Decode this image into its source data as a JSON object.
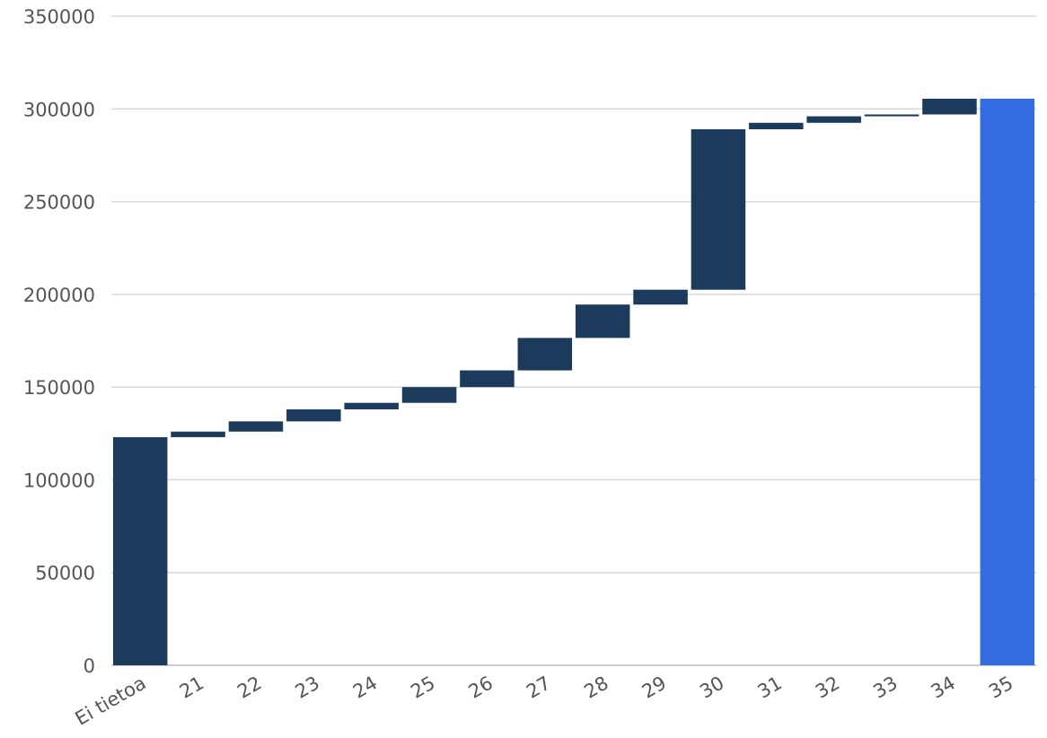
{
  "chart_data": {
    "type": "bar",
    "subtype": "waterfall",
    "title": "",
    "xlabel": "",
    "ylabel": "",
    "ylim": [
      0,
      350000
    ],
    "yticks": [
      0,
      50000,
      100000,
      150000,
      200000,
      250000,
      300000,
      350000
    ],
    "grid": true,
    "legend": "none",
    "categories": [
      "Ei tietoa",
      "21",
      "22",
      "23",
      "24",
      "25",
      "26",
      "27",
      "28",
      "29",
      "30",
      "31",
      "32",
      "33",
      "34",
      "35"
    ],
    "steps": [
      {
        "label": "Ei tietoa",
        "start": 0,
        "end": 123000,
        "kind": "increase"
      },
      {
        "label": "21",
        "start": 123000,
        "end": 126000,
        "kind": "increase"
      },
      {
        "label": "22",
        "start": 126000,
        "end": 131500,
        "kind": "increase"
      },
      {
        "label": "23",
        "start": 131500,
        "end": 138000,
        "kind": "increase"
      },
      {
        "label": "24",
        "start": 138000,
        "end": 141500,
        "kind": "increase"
      },
      {
        "label": "25",
        "start": 141500,
        "end": 150000,
        "kind": "increase"
      },
      {
        "label": "26",
        "start": 150000,
        "end": 159000,
        "kind": "increase"
      },
      {
        "label": "27",
        "start": 159000,
        "end": 176500,
        "kind": "increase"
      },
      {
        "label": "28",
        "start": 176500,
        "end": 194500,
        "kind": "increase"
      },
      {
        "label": "29",
        "start": 194500,
        "end": 202500,
        "kind": "increase"
      },
      {
        "label": "30",
        "start": 202500,
        "end": 289000,
        "kind": "increase"
      },
      {
        "label": "31",
        "start": 289000,
        "end": 292500,
        "kind": "increase"
      },
      {
        "label": "32",
        "start": 292500,
        "end": 296000,
        "kind": "increase"
      },
      {
        "label": "33",
        "start": 296000,
        "end": 297000,
        "kind": "increase"
      },
      {
        "label": "34",
        "start": 297000,
        "end": 305500,
        "kind": "increase"
      },
      {
        "label": "35",
        "start": 0,
        "end": 305500,
        "kind": "total"
      }
    ],
    "colors": {
      "increase": "#1b3a5c",
      "total": "#336be0",
      "grid": "#d9d9d9",
      "text": "#555555"
    }
  }
}
